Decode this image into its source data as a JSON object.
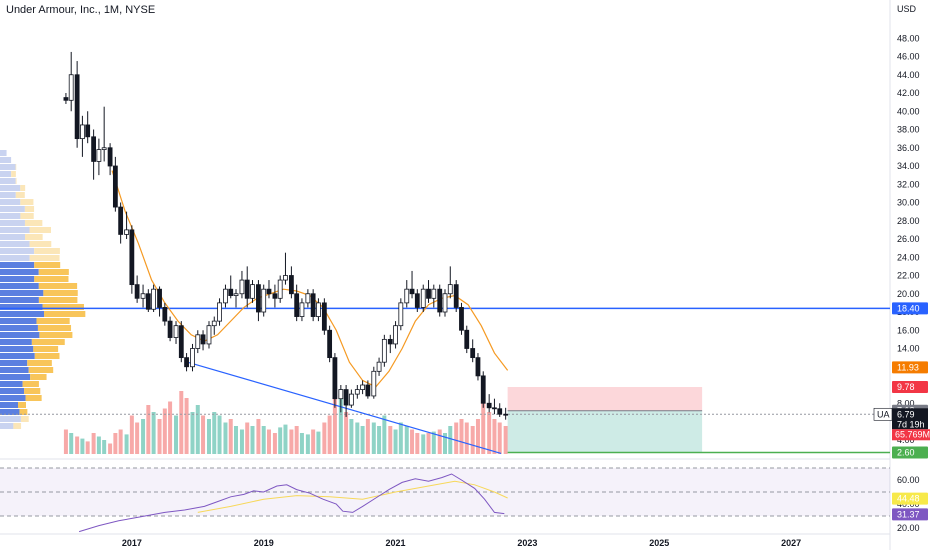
{
  "header": {
    "title": "Under Armour, Inc., 1M, NYSE",
    "currency": "USD"
  },
  "chart_data": {
    "type": "candlestick",
    "symbol": "UA",
    "ylim": [
      2,
      50
    ],
    "y_ticks": [
      48,
      46,
      44,
      42,
      40,
      38,
      36,
      34,
      32,
      30,
      28,
      26,
      24,
      22,
      20,
      18,
      16,
      14,
      12,
      10,
      8,
      6,
      4
    ],
    "y_tick_labels": [
      "48.00",
      "46.00",
      "44.00",
      "42.00",
      "40.00",
      "38.00",
      "36.00",
      "34.00",
      "32.00",
      "30.00",
      "28.00",
      "26.00",
      "24.00",
      "22.00",
      "20.00",
      "18.00",
      "16.00",
      "14.00",
      "12.00",
      "10.00",
      "8.00",
      "6.00",
      "4.00"
    ],
    "x_ticks": [
      2017,
      2019,
      2021,
      2023,
      2025,
      2027
    ],
    "x_tick_labels": [
      "2017",
      "2019",
      "2021",
      "2023",
      "2025",
      "2027"
    ],
    "x_range": [
      2015.0,
      2028.5
    ],
    "candles": [
      [
        2016.0,
        41.5,
        42.0,
        40.8,
        41.2
      ],
      [
        2016.08,
        41.2,
        46.5,
        40.0,
        44.0
      ],
      [
        2016.17,
        44.0,
        45.5,
        36.0,
        37.0
      ],
      [
        2016.25,
        37.0,
        39.5,
        35.0,
        38.5
      ],
      [
        2016.33,
        38.5,
        40.0,
        36.5,
        37.2
      ],
      [
        2016.42,
        37.2,
        38.0,
        32.5,
        34.5
      ],
      [
        2016.5,
        34.5,
        37.0,
        33.0,
        35.8
      ],
      [
        2016.58,
        35.8,
        40.5,
        34.5,
        36.0
      ],
      [
        2016.67,
        36.0,
        36.5,
        33.0,
        34.0
      ],
      [
        2016.75,
        34.0,
        35.0,
        29.0,
        29.5
      ],
      [
        2016.83,
        29.5,
        30.0,
        25.5,
        26.5
      ],
      [
        2016.92,
        26.5,
        29.0,
        26.0,
        27.0
      ],
      [
        2017.0,
        27.0,
        27.5,
        20.0,
        21.0
      ],
      [
        2017.08,
        21.0,
        22.0,
        19.0,
        19.5
      ],
      [
        2017.17,
        19.5,
        21.0,
        18.5,
        20.0
      ],
      [
        2017.25,
        20.0,
        20.5,
        18.0,
        18.3
      ],
      [
        2017.33,
        18.3,
        21.0,
        18.0,
        20.5
      ],
      [
        2017.42,
        20.5,
        20.8,
        17.5,
        18.5
      ],
      [
        2017.5,
        18.5,
        19.0,
        16.5,
        17.0
      ],
      [
        2017.58,
        17.0,
        17.5,
        14.8,
        15.2
      ],
      [
        2017.67,
        15.2,
        17.0,
        14.5,
        16.5
      ],
      [
        2017.75,
        16.5,
        17.0,
        12.5,
        13.0
      ],
      [
        2017.83,
        13.0,
        13.5,
        11.5,
        12.0
      ],
      [
        2017.92,
        12.0,
        14.5,
        11.5,
        14.0
      ],
      [
        2018.0,
        14.0,
        16.0,
        13.5,
        15.5
      ],
      [
        2018.08,
        15.5,
        16.0,
        13.8,
        14.5
      ],
      [
        2018.17,
        14.5,
        17.0,
        14.0,
        16.5
      ],
      [
        2018.25,
        16.5,
        17.5,
        15.5,
        17.0
      ],
      [
        2018.33,
        17.0,
        19.5,
        16.5,
        19.0
      ],
      [
        2018.42,
        19.0,
        21.0,
        18.5,
        20.5
      ],
      [
        2018.5,
        20.5,
        22.0,
        19.5,
        19.8
      ],
      [
        2018.58,
        19.8,
        20.5,
        18.5,
        20.0
      ],
      [
        2018.67,
        20.0,
        22.5,
        19.5,
        21.5
      ],
      [
        2018.75,
        21.5,
        23.0,
        18.5,
        19.5
      ],
      [
        2018.83,
        19.5,
        21.5,
        19.0,
        21.0
      ],
      [
        2018.92,
        21.0,
        21.5,
        17.0,
        18.0
      ],
      [
        2019.0,
        18.0,
        21.0,
        17.5,
        20.5
      ],
      [
        2019.08,
        20.5,
        21.5,
        19.5,
        20.0
      ],
      [
        2019.17,
        20.0,
        21.0,
        18.5,
        19.5
      ],
      [
        2019.25,
        19.5,
        22.0,
        19.0,
        21.5
      ],
      [
        2019.33,
        21.5,
        24.5,
        21.0,
        22.0
      ],
      [
        2019.42,
        22.0,
        23.0,
        19.5,
        20.0
      ],
      [
        2019.5,
        20.0,
        21.0,
        17.0,
        17.5
      ],
      [
        2019.58,
        17.5,
        19.5,
        17.0,
        19.0
      ],
      [
        2019.67,
        19.0,
        20.5,
        18.5,
        20.0
      ],
      [
        2019.75,
        20.0,
        20.5,
        17.0,
        17.5
      ],
      [
        2019.83,
        17.5,
        19.5,
        17.0,
        19.0
      ],
      [
        2019.92,
        19.0,
        19.5,
        15.5,
        16.0
      ],
      [
        2020.0,
        16.0,
        16.5,
        12.5,
        13.0
      ],
      [
        2020.08,
        13.0,
        13.5,
        7.5,
        8.5
      ],
      [
        2020.17,
        8.5,
        10.0,
        7.0,
        9.5
      ],
      [
        2020.25,
        9.5,
        10.0,
        6.5,
        7.8
      ],
      [
        2020.33,
        7.8,
        9.5,
        7.5,
        9.0
      ],
      [
        2020.42,
        9.0,
        10.0,
        8.5,
        9.5
      ],
      [
        2020.5,
        9.5,
        10.5,
        9.0,
        10.0
      ],
      [
        2020.58,
        10.0,
        10.5,
        8.5,
        8.8
      ],
      [
        2020.67,
        8.8,
        12.0,
        8.5,
        11.5
      ],
      [
        2020.75,
        11.5,
        13.0,
        11.0,
        12.5
      ],
      [
        2020.83,
        12.5,
        15.5,
        12.0,
        15.0
      ],
      [
        2020.92,
        15.0,
        15.5,
        13.5,
        14.5
      ],
      [
        2021.0,
        14.5,
        17.0,
        14.0,
        16.5
      ],
      [
        2021.08,
        16.5,
        19.5,
        16.0,
        19.0
      ],
      [
        2021.17,
        19.0,
        21.5,
        18.5,
        20.5
      ],
      [
        2021.25,
        20.5,
        22.5,
        19.5,
        20.0
      ],
      [
        2021.33,
        20.0,
        20.5,
        18.0,
        18.5
      ],
      [
        2021.42,
        18.5,
        21.0,
        18.0,
        20.5
      ],
      [
        2021.5,
        20.5,
        21.5,
        19.0,
        19.5
      ],
      [
        2021.58,
        19.5,
        21.0,
        18.5,
        20.5
      ],
      [
        2021.67,
        20.5,
        21.0,
        17.5,
        18.0
      ],
      [
        2021.75,
        18.0,
        20.5,
        17.5,
        20.0
      ],
      [
        2021.83,
        20.0,
        23.0,
        19.5,
        21.0
      ],
      [
        2021.92,
        21.0,
        21.5,
        18.0,
        18.5
      ],
      [
        2022.0,
        18.5,
        19.0,
        15.5,
        16.0
      ],
      [
        2022.08,
        16.0,
        16.5,
        13.5,
        14.0
      ],
      [
        2022.17,
        14.0,
        15.0,
        12.5,
        13.0
      ],
      [
        2022.25,
        13.0,
        13.5,
        10.5,
        11.0
      ],
      [
        2022.33,
        11.0,
        11.5,
        7.5,
        8.0
      ],
      [
        2022.42,
        8.0,
        9.0,
        7.0,
        7.5
      ],
      [
        2022.5,
        7.5,
        8.5,
        6.8,
        7.4
      ],
      [
        2022.58,
        7.4,
        8.0,
        6.5,
        6.8
      ],
      [
        2022.67,
        6.8,
        7.5,
        6.2,
        6.79
      ]
    ],
    "ma_line": [
      [
        2016.7,
        33.5
      ],
      [
        2016.9,
        29.0
      ],
      [
        2017.1,
        25.5
      ],
      [
        2017.3,
        21.5
      ],
      [
        2017.5,
        19.0
      ],
      [
        2017.7,
        17.0
      ],
      [
        2017.9,
        15.5
      ],
      [
        2018.1,
        14.8
      ],
      [
        2018.3,
        15.5
      ],
      [
        2018.5,
        17.0
      ],
      [
        2018.7,
        18.5
      ],
      [
        2018.9,
        19.5
      ],
      [
        2019.1,
        20.0
      ],
      [
        2019.3,
        20.5
      ],
      [
        2019.5,
        20.3
      ],
      [
        2019.7,
        19.8
      ],
      [
        2019.9,
        18.5
      ],
      [
        2020.1,
        16.0
      ],
      [
        2020.3,
        12.5
      ],
      [
        2020.5,
        10.5
      ],
      [
        2020.7,
        9.8
      ],
      [
        2020.9,
        11.5
      ],
      [
        2021.1,
        14.0
      ],
      [
        2021.3,
        17.0
      ],
      [
        2021.5,
        18.8
      ],
      [
        2021.7,
        19.5
      ],
      [
        2021.9,
        19.8
      ],
      [
        2022.1,
        18.8
      ],
      [
        2022.3,
        16.5
      ],
      [
        2022.5,
        13.5
      ],
      [
        2022.7,
        11.6
      ]
    ],
    "trendline": [
      [
        2017.8,
        12.6
      ],
      [
        2022.6,
        2.5
      ]
    ],
    "horizontal_level": 18.4,
    "position": {
      "x0": 2022.7,
      "x1": 2025.65,
      "entry": 7.18,
      "target": 2.6,
      "stop": 9.78
    },
    "volume": [
      [
        2016.0,
        0.35
      ],
      [
        2016.08,
        0.3
      ],
      [
        2016.17,
        0.25
      ],
      [
        2016.25,
        0.22
      ],
      [
        2016.33,
        0.18
      ],
      [
        2016.42,
        0.3
      ],
      [
        2016.5,
        0.25
      ],
      [
        2016.58,
        0.2
      ],
      [
        2016.67,
        0.15
      ],
      [
        2016.75,
        0.3
      ],
      [
        2016.83,
        0.35
      ],
      [
        2016.92,
        0.28
      ],
      [
        2017.0,
        0.55
      ],
      [
        2017.08,
        0.45
      ],
      [
        2017.17,
        0.5
      ],
      [
        2017.25,
        0.7
      ],
      [
        2017.33,
        0.6
      ],
      [
        2017.42,
        0.5
      ],
      [
        2017.5,
        0.65
      ],
      [
        2017.58,
        0.75
      ],
      [
        2017.67,
        0.55
      ],
      [
        2017.75,
        0.9
      ],
      [
        2017.83,
        0.8
      ],
      [
        2017.92,
        0.6
      ],
      [
        2018.0,
        0.7
      ],
      [
        2018.08,
        0.55
      ],
      [
        2018.17,
        0.5
      ],
      [
        2018.25,
        0.6
      ],
      [
        2018.33,
        0.55
      ],
      [
        2018.42,
        0.45
      ],
      [
        2018.5,
        0.5
      ],
      [
        2018.58,
        0.4
      ],
      [
        2018.67,
        0.35
      ],
      [
        2018.75,
        0.45
      ],
      [
        2018.83,
        0.4
      ],
      [
        2018.92,
        0.5
      ],
      [
        2019.0,
        0.4
      ],
      [
        2019.08,
        0.35
      ],
      [
        2019.17,
        0.3
      ],
      [
        2019.25,
        0.38
      ],
      [
        2019.33,
        0.42
      ],
      [
        2019.42,
        0.35
      ],
      [
        2019.5,
        0.4
      ],
      [
        2019.58,
        0.3
      ],
      [
        2019.67,
        0.28
      ],
      [
        2019.75,
        0.35
      ],
      [
        2019.83,
        0.32
      ],
      [
        2019.92,
        0.45
      ],
      [
        2020.0,
        0.55
      ],
      [
        2020.08,
        0.95
      ],
      [
        2020.17,
        0.8
      ],
      [
        2020.25,
        0.6
      ],
      [
        2020.33,
        0.5
      ],
      [
        2020.42,
        0.45
      ],
      [
        2020.5,
        0.4
      ],
      [
        2020.58,
        0.5
      ],
      [
        2020.67,
        0.45
      ],
      [
        2020.75,
        0.4
      ],
      [
        2020.83,
        0.55
      ],
      [
        2020.92,
        0.4
      ],
      [
        2021.0,
        0.35
      ],
      [
        2021.08,
        0.45
      ],
      [
        2021.17,
        0.4
      ],
      [
        2021.25,
        0.35
      ],
      [
        2021.33,
        0.3
      ],
      [
        2021.42,
        0.28
      ],
      [
        2021.5,
        0.3
      ],
      [
        2021.58,
        0.32
      ],
      [
        2021.67,
        0.35
      ],
      [
        2021.75,
        0.3
      ],
      [
        2021.83,
        0.4
      ],
      [
        2021.92,
        0.45
      ],
      [
        2022.0,
        0.5
      ],
      [
        2022.08,
        0.45
      ],
      [
        2022.17,
        0.4
      ],
      [
        2022.25,
        0.5
      ],
      [
        2022.33,
        0.85
      ],
      [
        2022.42,
        0.6
      ],
      [
        2022.5,
        0.5
      ],
      [
        2022.58,
        0.45
      ],
      [
        2022.67,
        0.4
      ]
    ],
    "price_badges": [
      {
        "value": 18.4,
        "label": "18.40",
        "color": "#2962ff"
      },
      {
        "value": 11.93,
        "label": "11.93",
        "color": "#f57c00"
      },
      {
        "value": 9.78,
        "label": "9.78",
        "color": "#f23645"
      },
      {
        "value": 7.18,
        "label": "7.18",
        "color": "#787b86"
      },
      {
        "value": 2.6,
        "label": "2.60",
        "color": "#4caf50"
      }
    ],
    "last_price": {
      "label": "6.79",
      "countdown": "7d 19h",
      "volume_label": "65.769M"
    },
    "rsi": {
      "ylim": [
        15,
        75
      ],
      "y_ticks": [
        60,
        40,
        20
      ],
      "y_tick_labels": [
        "60.00",
        "40.00",
        "20.00"
      ],
      "upper": 70,
      "lower": 30,
      "rsi_badge": "31.37",
      "ma_badge": "44.48",
      "rsi_line": [
        [
          2016.2,
          17
        ],
        [
          2016.5,
          22
        ],
        [
          2016.8,
          26
        ],
        [
          2017.0,
          28
        ],
        [
          2017.2,
          30
        ],
        [
          2017.5,
          33
        ],
        [
          2017.8,
          35
        ],
        [
          2018.1,
          38
        ],
        [
          2018.3,
          42
        ],
        [
          2018.5,
          46
        ],
        [
          2018.7,
          48
        ],
        [
          2018.85,
          51
        ],
        [
          2019.0,
          50
        ],
        [
          2019.2,
          55
        ],
        [
          2019.35,
          56
        ],
        [
          2019.5,
          52
        ],
        [
          2019.7,
          49
        ],
        [
          2019.9,
          44
        ],
        [
          2020.1,
          40
        ],
        [
          2020.2,
          34
        ],
        [
          2020.35,
          33
        ],
        [
          2020.5,
          38
        ],
        [
          2020.7,
          45
        ],
        [
          2020.9,
          52
        ],
        [
          2021.1,
          58
        ],
        [
          2021.3,
          61
        ],
        [
          2021.5,
          59
        ],
        [
          2021.7,
          62
        ],
        [
          2021.85,
          65
        ],
        [
          2022.0,
          60
        ],
        [
          2022.2,
          53
        ],
        [
          2022.35,
          44
        ],
        [
          2022.5,
          33
        ],
        [
          2022.65,
          32
        ]
      ],
      "ma_line": [
        [
          2018.0,
          33
        ],
        [
          2018.5,
          38
        ],
        [
          2019.0,
          44
        ],
        [
          2019.5,
          47
        ],
        [
          2020.0,
          46
        ],
        [
          2020.5,
          44
        ],
        [
          2021.0,
          50
        ],
        [
          2021.5,
          55
        ],
        [
          2021.9,
          59
        ],
        [
          2022.2,
          56
        ],
        [
          2022.5,
          50
        ],
        [
          2022.7,
          45
        ]
      ]
    }
  }
}
